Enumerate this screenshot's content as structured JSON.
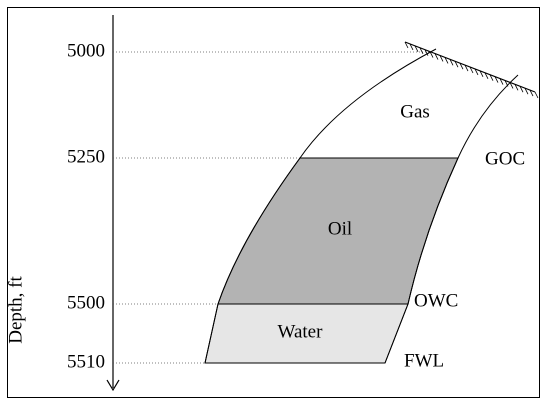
{
  "axis_label": "Depth, ft",
  "depth_ticks": [
    5000,
    5250,
    5500,
    5510
  ],
  "zones": [
    "Gas",
    "Oil",
    "Water"
  ],
  "contacts": [
    "GOC",
    "OWC",
    "FWL"
  ]
}
